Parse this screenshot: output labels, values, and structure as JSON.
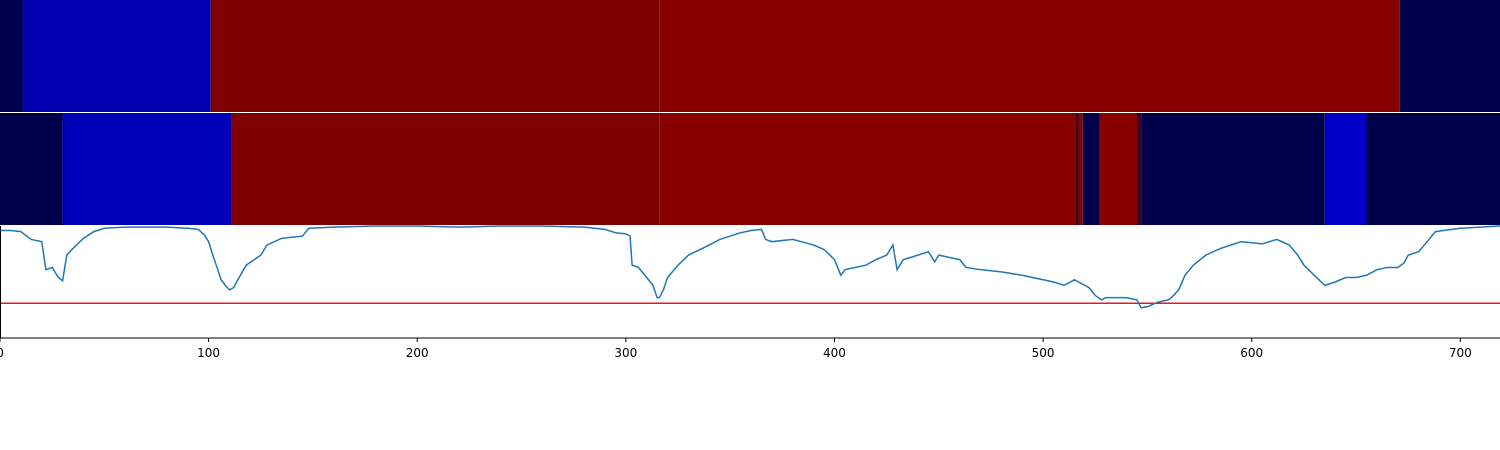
{
  "chart_data": {
    "type": "line",
    "xlim": [
      0,
      719
    ],
    "ylim": [
      0,
      1
    ],
    "xticks": [
      0,
      100,
      200,
      300,
      400,
      500,
      600,
      700
    ],
    "strips": [
      {
        "segments": [
          {
            "start": 0,
            "end": 11,
            "color": "#000050"
          },
          {
            "start": 11,
            "end": 101,
            "color": "#0000b0"
          },
          {
            "start": 101,
            "end": 316,
            "color": "#7f0000"
          },
          {
            "start": 316,
            "end": 671,
            "color": "#890000"
          },
          {
            "start": 671,
            "end": 719,
            "color": "#000050"
          }
        ]
      },
      {
        "segments": [
          {
            "start": 0,
            "end": 30,
            "color": "#00004a"
          },
          {
            "start": 30,
            "end": 111,
            "color": "#0000b8"
          },
          {
            "start": 111,
            "end": 316,
            "color": "#7f0000"
          },
          {
            "start": 316,
            "end": 516,
            "color": "#890000"
          },
          {
            "start": 516,
            "end": 517,
            "color": "#10001a"
          },
          {
            "start": 517,
            "end": 519,
            "color": "#890000"
          },
          {
            "start": 519,
            "end": 527,
            "color": "#00004a"
          },
          {
            "start": 527,
            "end": 545,
            "color": "#890000"
          },
          {
            "start": 545,
            "end": 547,
            "color": "#30002a"
          },
          {
            "start": 547,
            "end": 635,
            "color": "#00004a"
          },
          {
            "start": 635,
            "end": 655,
            "color": "#0000c8"
          },
          {
            "start": 655,
            "end": 719,
            "color": "#00004a"
          }
        ]
      }
    ],
    "x": [
      0,
      5,
      10,
      15,
      20,
      22,
      25,
      28,
      30,
      32,
      35,
      40,
      45,
      50,
      60,
      70,
      80,
      90,
      95,
      98,
      100,
      102,
      104,
      106,
      108,
      110,
      112,
      114,
      118,
      125,
      128,
      135,
      145,
      148,
      160,
      180,
      200,
      220,
      240,
      260,
      280,
      290,
      295,
      300,
      302,
      303,
      306,
      310,
      313,
      315,
      316,
      318,
      320,
      325,
      330,
      340,
      345,
      350,
      355,
      360,
      365,
      367,
      370,
      380,
      390,
      395,
      400,
      403,
      405,
      410,
      415,
      420,
      425,
      428,
      430,
      433,
      440,
      445,
      448,
      450,
      455,
      460,
      463,
      470,
      480,
      490,
      495,
      500,
      505,
      510,
      515,
      518,
      522,
      525,
      528,
      530,
      540,
      545,
      547,
      550,
      555,
      560,
      562,
      565,
      568,
      572,
      578,
      585,
      595,
      605,
      612,
      618,
      622,
      625,
      630,
      635,
      640,
      645,
      650,
      655,
      660,
      665,
      670,
      673,
      675,
      680,
      685,
      688,
      700,
      719
    ],
    "values": [
      0.96,
      0.96,
      0.95,
      0.88,
      0.86,
      0.61,
      0.63,
      0.54,
      0.51,
      0.74,
      0.8,
      0.89,
      0.95,
      0.98,
      0.99,
      0.99,
      0.99,
      0.98,
      0.97,
      0.92,
      0.86,
      0.74,
      0.63,
      0.52,
      0.47,
      0.43,
      0.45,
      0.52,
      0.65,
      0.74,
      0.83,
      0.89,
      0.91,
      0.98,
      0.99,
      1.0,
      1.0,
      0.99,
      1.0,
      1.0,
      0.99,
      0.97,
      0.94,
      0.93,
      0.91,
      0.65,
      0.63,
      0.54,
      0.47,
      0.36,
      0.36,
      0.43,
      0.54,
      0.65,
      0.74,
      0.83,
      0.88,
      0.91,
      0.94,
      0.96,
      0.97,
      0.88,
      0.86,
      0.88,
      0.83,
      0.79,
      0.7,
      0.56,
      0.61,
      0.63,
      0.65,
      0.7,
      0.74,
      0.83,
      0.61,
      0.7,
      0.74,
      0.77,
      0.68,
      0.74,
      0.72,
      0.7,
      0.63,
      0.61,
      0.59,
      0.56,
      0.54,
      0.52,
      0.5,
      0.47,
      0.52,
      0.49,
      0.45,
      0.38,
      0.34,
      0.36,
      0.36,
      0.34,
      0.27,
      0.28,
      0.32,
      0.34,
      0.37,
      0.43,
      0.56,
      0.65,
      0.74,
      0.8,
      0.86,
      0.84,
      0.88,
      0.83,
      0.74,
      0.65,
      0.56,
      0.47,
      0.5,
      0.54,
      0.54,
      0.56,
      0.61,
      0.63,
      0.63,
      0.67,
      0.74,
      0.77,
      0.88,
      0.95,
      0.98,
      1.0
    ],
    "color": "#1f77b4",
    "threshold": 0.31,
    "threshold_color": "#e41a1c"
  }
}
